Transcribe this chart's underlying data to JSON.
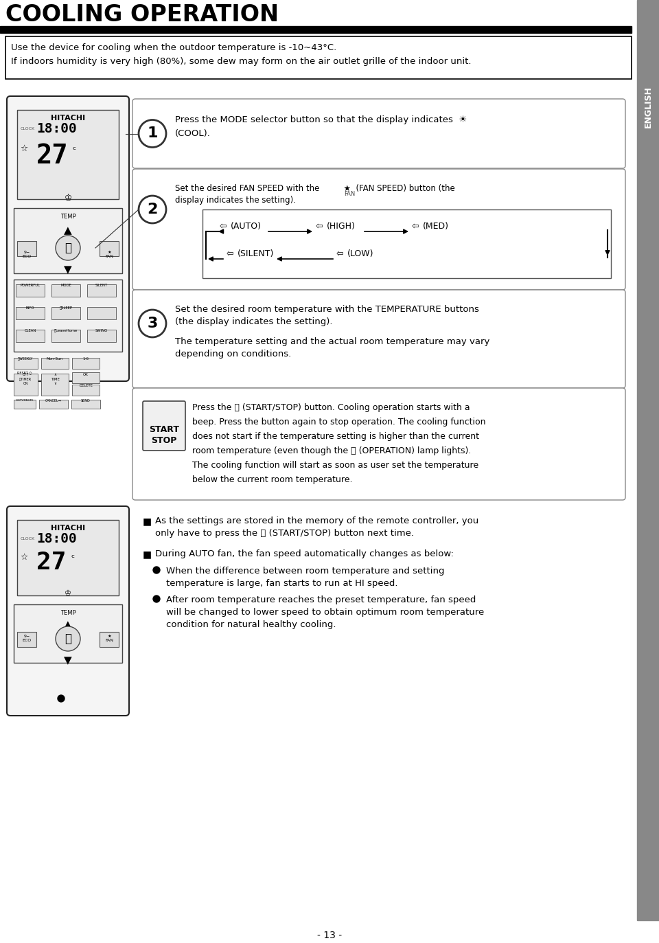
{
  "title": "COOLING OPERATION",
  "bg_color": "#ffffff",
  "page_num": "- 13 -",
  "intro_line1": "Use the device for cooling when the outdoor temperature is -10~43°C.",
  "intro_line2": "If indoors humidity is very high (80%), some dew may form on the air outlet grille of the indoor unit.",
  "step1_text_line1": "Press the MODE selector button so that the display indicates  ☀",
  "step1_text_line2": "(COOL).",
  "step2_intro1": "Set the desired FAN SPEED with the",
  "step2_intro2": "FAN",
  "step2_intro3": "(FAN SPEED) button (the",
  "step2_intro4": "display indicates the setting).",
  "flow_top": [
    "↵ (AUTO)",
    "↵ (HIGH)",
    "↵ (MED)"
  ],
  "flow_bot": [
    "↵ (SILENT)",
    "↵ (LOW)"
  ],
  "step3_line1": "Set the desired room temperature with the TEMPERATURE buttons",
  "step3_line2": "(the display indicates the setting).",
  "step3_line3": "The temperature setting and the actual room temperature may vary",
  "step3_line4": "depending on conditions.",
  "ss_line1": "Press the ⓘ (START/STOP) button. Cooling operation starts with a",
  "ss_line2": "beep. Press the button again to stop operation. The cooling function",
  "ss_line3": "does not start if the temperature setting is higher than the current",
  "ss_line4": "room temperature (even though the ⓘ (OPERATION) lamp lights).",
  "ss_line5": "The cooling function will start as soon as user set the temperature",
  "ss_line6": "below the current room temperature.",
  "b1_line1": "As the settings are stored in the memory of the remote controller, you",
  "b1_line2": "only have to press the ⓘ (START/STOP) button next time.",
  "b2_line1": "During AUTO fan, the fan speed automatically changes as below:",
  "b2s1_line1": "When the difference between room temperature and setting",
  "b2s1_line2": "temperature is large, fan starts to run at HI speed.",
  "b2s2_line1": "After room temperature reaches the preset temperature, fan speed",
  "b2s2_line2": "will be changed to lower speed to obtain optimum room temperature",
  "b2s2_line3": "condition for natural healthy cooling."
}
